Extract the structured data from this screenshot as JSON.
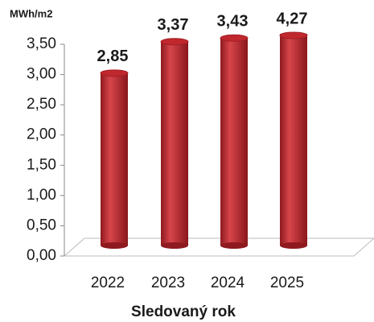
{
  "chart_data": {
    "type": "bar",
    "y_axis_label": "MWh/m2",
    "x_axis_label": "Sledovaný rok",
    "categories": [
      "2022",
      "2023",
      "2024",
      "2025"
    ],
    "values": [
      2.85,
      3.37,
      3.43,
      4.27
    ],
    "value_labels": [
      "2,85",
      "3,37",
      "3,43",
      "4,27"
    ],
    "color": "#c0282e",
    "ylim": [
      0,
      3.5
    ],
    "yticks": [
      {
        "value": 0,
        "label": "0,00"
      },
      {
        "value": 0.5,
        "label": "0,50"
      },
      {
        "value": 1,
        "label": "1,00"
      },
      {
        "value": 1.5,
        "label": "1,50"
      },
      {
        "value": 2,
        "label": "2,00"
      },
      {
        "value": 2.5,
        "label": "2,50"
      },
      {
        "value": 3,
        "label": "3,00"
      },
      {
        "value": 3.5,
        "label": "3,50"
      }
    ]
  }
}
